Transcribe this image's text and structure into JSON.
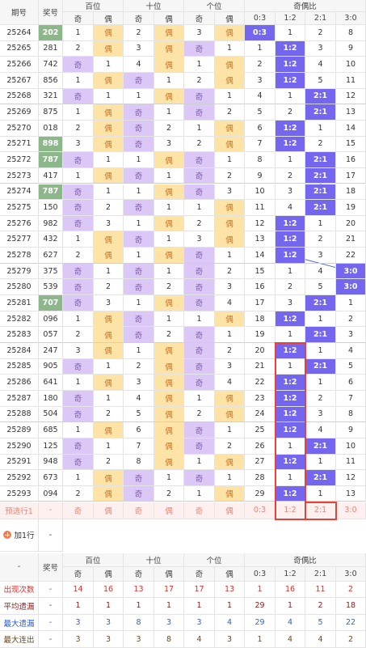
{
  "header": {
    "period": "期号",
    "number": "奖号",
    "groups": [
      "百位",
      "十位",
      "个位",
      "奇偶比"
    ],
    "sub": [
      "奇",
      "偶",
      "奇",
      "偶",
      "奇",
      "偶",
      "0:3",
      "1:2",
      "2:1",
      "3:0"
    ]
  },
  "rows": [
    [
      "25264",
      "202",
      "1",
      "偶",
      "2",
      "偶",
      "3",
      "偶",
      "0:3",
      "1",
      "2",
      "8"
    ],
    [
      "25265",
      "281",
      "2",
      "偶",
      "3",
      "偶",
      "奇",
      "1",
      "1",
      "1:2",
      "3",
      "9"
    ],
    [
      "25266",
      "742",
      "奇",
      "1",
      "4",
      "偶",
      "1",
      "偶",
      "2",
      "1:2",
      "4",
      "10"
    ],
    [
      "25267",
      "856",
      "1",
      "偶",
      "奇",
      "1",
      "2",
      "偶",
      "3",
      "1:2",
      "5",
      "11"
    ],
    [
      "25268",
      "321",
      "奇",
      "1",
      "1",
      "偶",
      "奇",
      "1",
      "4",
      "1",
      "2:1",
      "12"
    ],
    [
      "25269",
      "875",
      "1",
      "偶",
      "奇",
      "1",
      "奇",
      "2",
      "5",
      "2",
      "2:1",
      "13"
    ],
    [
      "25270",
      "018",
      "2",
      "偶",
      "奇",
      "2",
      "1",
      "偶",
      "6",
      "1:2",
      "1",
      "14"
    ],
    [
      "25271",
      "898",
      "3",
      "偶",
      "奇",
      "3",
      "2",
      "偶",
      "7",
      "1:2",
      "2",
      "15"
    ],
    [
      "25272",
      "787",
      "奇",
      "1",
      "1",
      "偶",
      "奇",
      "1",
      "8",
      "1",
      "2:1",
      "16"
    ],
    [
      "25273",
      "417",
      "1",
      "偶",
      "奇",
      "1",
      "奇",
      "2",
      "9",
      "2",
      "2:1",
      "17"
    ],
    [
      "25274",
      "787",
      "奇",
      "1",
      "1",
      "偶",
      "奇",
      "3",
      "10",
      "3",
      "2:1",
      "18"
    ],
    [
      "25275",
      "150",
      "奇",
      "2",
      "奇",
      "1",
      "1",
      "偶",
      "11",
      "4",
      "2:1",
      "19"
    ],
    [
      "25276",
      "982",
      "奇",
      "3",
      "1",
      "偶",
      "2",
      "偶",
      "12",
      "1:2",
      "1",
      "20"
    ],
    [
      "25277",
      "432",
      "1",
      "偶",
      "奇",
      "1",
      "3",
      "偶",
      "13",
      "1:2",
      "2",
      "21"
    ],
    [
      "25278",
      "627",
      "2",
      "偶",
      "1",
      "偶",
      "奇",
      "1",
      "14",
      "1:2",
      "3",
      "22"
    ],
    [
      "25279",
      "375",
      "奇",
      "1",
      "奇",
      "1",
      "奇",
      "2",
      "15",
      "1",
      "4",
      "3:0"
    ],
    [
      "25280",
      "539",
      "奇",
      "2",
      "奇",
      "2",
      "奇",
      "3",
      "16",
      "2",
      "5",
      "3:0"
    ],
    [
      "25281",
      "707",
      "奇",
      "3",
      "1",
      "偶",
      "奇",
      "4",
      "17",
      "3",
      "2:1",
      "1"
    ],
    [
      "25282",
      "096",
      "1",
      "偶",
      "奇",
      "1",
      "1",
      "偶",
      "18",
      "1:2",
      "1",
      "2"
    ],
    [
      "25283",
      "057",
      "2",
      "偶",
      "奇",
      "2",
      "奇",
      "1",
      "19",
      "1",
      "2:1",
      "3"
    ],
    [
      "25284",
      "247",
      "3",
      "偶",
      "1",
      "偶",
      "奇",
      "2",
      "20",
      "1:2",
      "1",
      "4"
    ],
    [
      "25285",
      "905",
      "奇",
      "1",
      "2",
      "偶",
      "奇",
      "3",
      "21",
      "1",
      "2:1",
      "5"
    ],
    [
      "25286",
      "641",
      "1",
      "偶",
      "3",
      "偶",
      "奇",
      "4",
      "22",
      "1:2",
      "1",
      "6"
    ],
    [
      "25287",
      "180",
      "奇",
      "1",
      "4",
      "偶",
      "1",
      "偶",
      "23",
      "1:2",
      "2",
      "7"
    ],
    [
      "25288",
      "504",
      "奇",
      "2",
      "5",
      "偶",
      "2",
      "偶",
      "24",
      "1:2",
      "3",
      "8"
    ],
    [
      "25289",
      "685",
      "1",
      "偶",
      "6",
      "偶",
      "奇",
      "1",
      "25",
      "1:2",
      "4",
      "9"
    ],
    [
      "25290",
      "125",
      "奇",
      "1",
      "7",
      "偶",
      "奇",
      "2",
      "26",
      "1",
      "2:1",
      "10"
    ],
    [
      "25291",
      "948",
      "奇",
      "2",
      "8",
      "偶",
      "1",
      "偶",
      "27",
      "1:2",
      "1",
      "11"
    ],
    [
      "25292",
      "673",
      "1",
      "偶",
      "奇",
      "1",
      "奇",
      "1",
      "28",
      "1",
      "2:1",
      "12"
    ],
    [
      "25293",
      "094",
      "2",
      "偶",
      "奇",
      "2",
      "1",
      "偶",
      "29",
      "1:2",
      "1",
      "13"
    ]
  ],
  "predict": {
    "label": "预选行1",
    "number": "-",
    "cells": [
      "奇",
      "偶",
      "奇",
      "偶",
      "奇",
      "偶",
      "0:3",
      "1:2",
      "2:1",
      "3:0"
    ]
  },
  "add_row": {
    "label": "加1行",
    "number": "-"
  },
  "stats": {
    "corner": "-",
    "number": "奖号",
    "groups": [
      "百位",
      "十位",
      "个位",
      "奇偶比"
    ],
    "sub": [
      "奇",
      "偶",
      "奇",
      "偶",
      "奇",
      "偶",
      "0:3",
      "1:2",
      "2:1",
      "3:0"
    ],
    "rows": [
      {
        "label": "出现次数",
        "number": "-",
        "color": "#e0302c",
        "values": [
          "14",
          "16",
          "13",
          "17",
          "17",
          "13",
          "1",
          "16",
          "11",
          "2"
        ]
      },
      {
        "label": "平均遗漏",
        "number": "-",
        "color": "#8e1b1b",
        "values": [
          "1",
          "1",
          "1",
          "1",
          "1",
          "1",
          "29",
          "1",
          "2",
          "18"
        ]
      },
      {
        "label": "最大遗漏",
        "number": "-",
        "color": "#2f5fc4",
        "values": [
          "3",
          "3",
          "8",
          "3",
          "3",
          "4",
          "29",
          "4",
          "5",
          "22"
        ]
      },
      {
        "label": "最大连出",
        "number": "-",
        "color": "#6b4a22",
        "values": [
          "3",
          "3",
          "3",
          "8",
          "4",
          "3",
          "1",
          "4",
          "4",
          "2"
        ]
      }
    ]
  }
}
